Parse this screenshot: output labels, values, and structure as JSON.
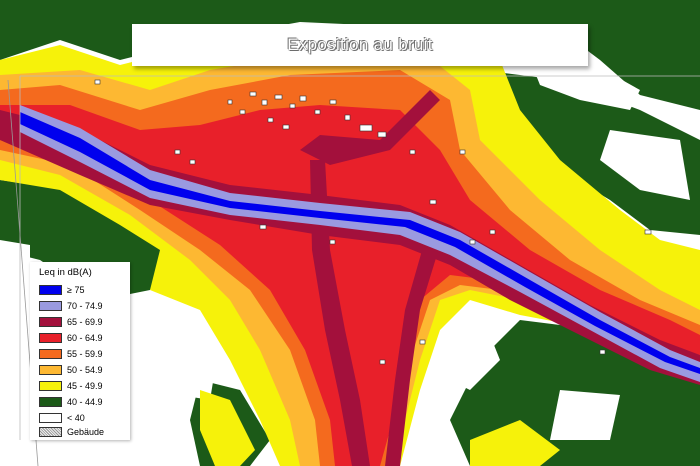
{
  "title": "Exposition au bruit",
  "legend": {
    "title": "Leq in dB(A)",
    "items": [
      {
        "label": "≥ 75",
        "color": "#0000ee"
      },
      {
        "label": "70 - 74.9",
        "color": "#9a9ae0"
      },
      {
        "label": "65 - 69.9",
        "color": "#a3103c"
      },
      {
        "label": "60 - 64.9",
        "color": "#e8202a"
      },
      {
        "label": "55 - 59.9",
        "color": "#f46a1e"
      },
      {
        "label": "50 - 54.9",
        "color": "#fdb832"
      },
      {
        "label": "45 - 49.9",
        "color": "#f6f20a"
      },
      {
        "label": "40 - 44.9",
        "color": "#1c5a18"
      },
      {
        "label": "< 40",
        "color": "#ffffff"
      }
    ],
    "buildings_label": "Gebäude"
  }
}
